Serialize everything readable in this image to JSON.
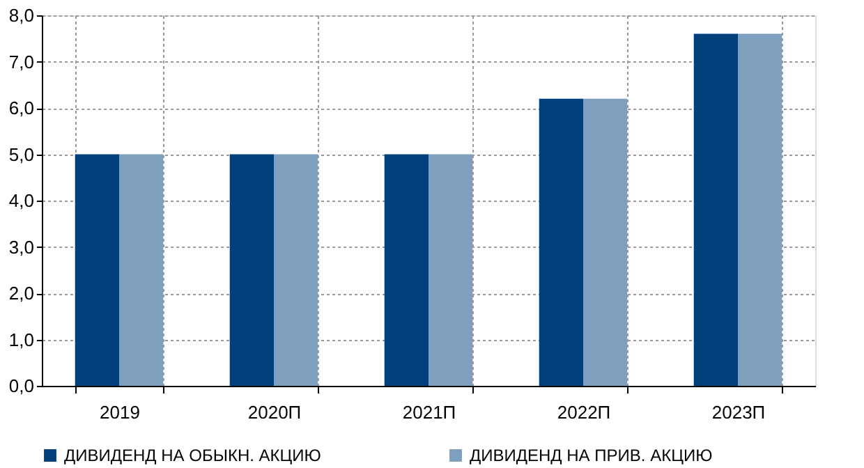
{
  "chart_data": {
    "type": "bar",
    "categories": [
      "2019",
      "2020П",
      "2021П",
      "2022П",
      "2023П"
    ],
    "series": [
      {
        "name": "ДИВИДЕНД НА ОБЫКН. АКЦИЮ",
        "color": "#003f7a",
        "values": [
          5.0,
          5.0,
          5.0,
          6.2,
          7.6
        ]
      },
      {
        "name": "ДИВИДЕНД НА ПРИВ. АКЦИЮ",
        "color": "#7f9fbf",
        "values": [
          5.0,
          5.0,
          5.0,
          6.2,
          7.6
        ]
      }
    ],
    "ylim": [
      0,
      8
    ],
    "yticks": [
      {
        "value": 0,
        "label": "0,0"
      },
      {
        "value": 1,
        "label": "1,0"
      },
      {
        "value": 2,
        "label": "2,0"
      },
      {
        "value": 3,
        "label": "3,0"
      },
      {
        "value": 4,
        "label": "4,0"
      },
      {
        "value": 5,
        "label": "5,0"
      },
      {
        "value": 6,
        "label": "6,0"
      },
      {
        "value": 7,
        "label": "7,0"
      },
      {
        "value": 8,
        "label": "8,0"
      }
    ],
    "grid": true,
    "legend": "bottom"
  }
}
